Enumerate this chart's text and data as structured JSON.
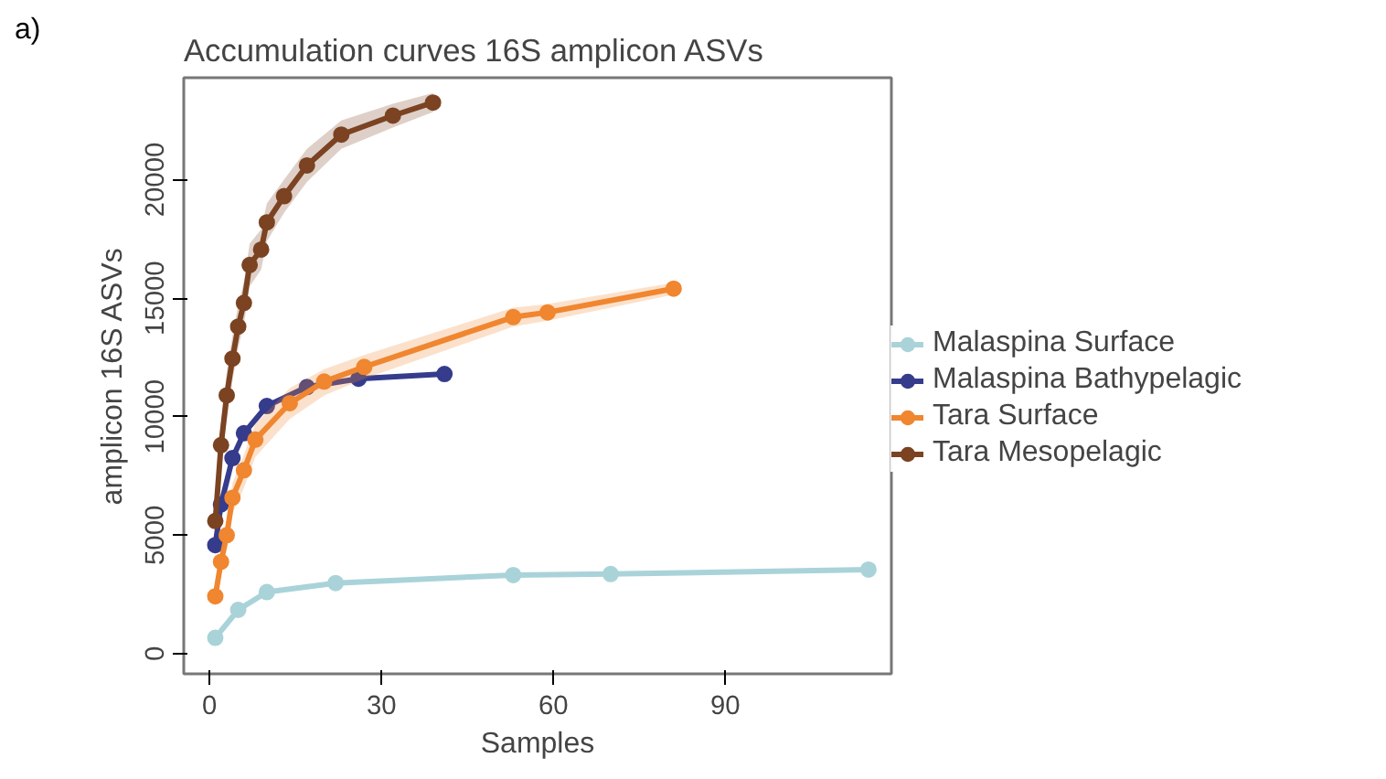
{
  "chart_data": {
    "type": "line",
    "title": "Accumulation curves 16S amplicon ASVs",
    "xlabel": "Samples",
    "ylabel": "amplicon 16S ASVs",
    "annotations": [
      "a)"
    ],
    "xlim": [
      -4.5,
      119
    ],
    "ylim": [
      -850,
      24300
    ],
    "xticks": [
      0,
      30,
      60,
      90
    ],
    "yticks": [
      0,
      5000,
      10000,
      15000,
      20000
    ],
    "grid": false,
    "legend": "right",
    "marker": "circle",
    "line_style": "solid",
    "series": [
      {
        "name": "Malaspina Surface",
        "color": "#a9d3d9",
        "x": [
          1,
          5,
          10,
          22,
          53,
          70,
          115
        ],
        "values": [
          670,
          1850,
          2600,
          2980,
          3320,
          3360,
          3550
        ]
      },
      {
        "name": "Malaspina Bathypelagic",
        "color": "#363c8c",
        "x": [
          1,
          2,
          4,
          6,
          10,
          17,
          26,
          41
        ],
        "values": [
          4580,
          6300,
          8250,
          9300,
          10450,
          11250,
          11600,
          11800
        ]
      },
      {
        "name": "Tara Surface",
        "color": "#f0862f",
        "x": [
          1,
          2,
          3,
          4,
          6,
          8,
          14,
          20,
          27,
          53,
          59,
          81
        ],
        "values": [
          2420,
          3880,
          5000,
          6580,
          7740,
          9030,
          10570,
          11480,
          12100,
          14200,
          14400,
          15400
        ],
        "lower": [
          2000,
          3300,
          4400,
          5900,
          7000,
          8300,
          9900,
          10900,
          11600,
          13800,
          14050,
          15150
        ],
        "upper": [
          2900,
          4400,
          5600,
          7200,
          8400,
          9700,
          11200,
          12000,
          12600,
          14600,
          14750,
          15650
        ]
      },
      {
        "name": "Tara Mesopelagic",
        "color": "#7b4322",
        "x": [
          1,
          2,
          3,
          4,
          5,
          6,
          7,
          9,
          10,
          13,
          17,
          23,
          32,
          39
        ],
        "values": [
          5600,
          8800,
          10900,
          12450,
          13800,
          14800,
          16400,
          17050,
          18200,
          19300,
          20600,
          21900,
          22700,
          23250
        ],
        "lower": [
          4900,
          7900,
          9900,
          11500,
          12900,
          13900,
          15500,
          16200,
          17400,
          18600,
          19900,
          21300,
          22200,
          22850
        ],
        "upper": [
          6300,
          9700,
          11900,
          13400,
          14700,
          15700,
          17300,
          17900,
          19000,
          20000,
          21300,
          22500,
          23200,
          23650
        ]
      }
    ]
  }
}
